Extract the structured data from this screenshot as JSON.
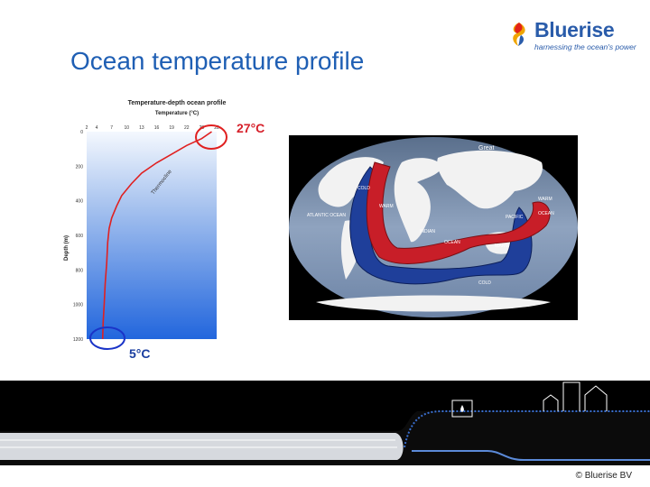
{
  "logo": {
    "name": "Bluerise",
    "tagline": "harnessing the ocean's power"
  },
  "title": "Ocean temperature profile",
  "chart": {
    "title": "Temperature-depth ocean profile",
    "x_axis_label": "Temperature (°C)",
    "y_axis_label": "Depth (m)",
    "curve_label": "Thermocline",
    "surface_callout": "27°C",
    "bottom_callout": "5°C"
  },
  "chart_data": {
    "type": "line",
    "title": "Temperature-depth ocean profile",
    "xlabel": "Temperature (°C)",
    "ylabel": "Depth (m)",
    "x_ticks": [
      2,
      4,
      7,
      10,
      13,
      16,
      19,
      22,
      25,
      28
    ],
    "y_ticks": [
      0,
      200,
      400,
      600,
      800,
      1000,
      1200
    ],
    "xlim": [
      2,
      28
    ],
    "ylim": [
      1200,
      0
    ],
    "series": [
      {
        "name": "Thermocline",
        "x": [
          27,
          25,
          22,
          19,
          16,
          13,
          11,
          9,
          8,
          7,
          6.5,
          6.2,
          6,
          5.7,
          5.5,
          5.3,
          5.2
        ],
        "y": [
          0,
          40,
          80,
          130,
          180,
          240,
          300,
          370,
          430,
          500,
          560,
          640,
          760,
          880,
          1000,
          1100,
          1200
        ]
      }
    ],
    "grid": false,
    "colors": {
      "line": "#e02020",
      "fill_top": "#e8f0fb",
      "fill_bottom": "#2266dd"
    }
  },
  "map": {
    "labels": {
      "top": "Great",
      "atlantic": "ATLANTIC\nOCEAN",
      "indian": "INDIAN",
      "ocean": "OCEAN",
      "pacific": "PACIFIC",
      "pacific_ocean": "OCEAN",
      "warm1": "WARM",
      "warm2": "WARM",
      "warm3": "WARM",
      "cold1": "COLD",
      "cold2": "COLD"
    }
  },
  "footer": {
    "copyright": "© Bluerise BV"
  },
  "colors": {
    "brand_blue": "#1f5fb4",
    "hot_red": "#d6202a",
    "cold_blue": "#1a3ea0"
  }
}
